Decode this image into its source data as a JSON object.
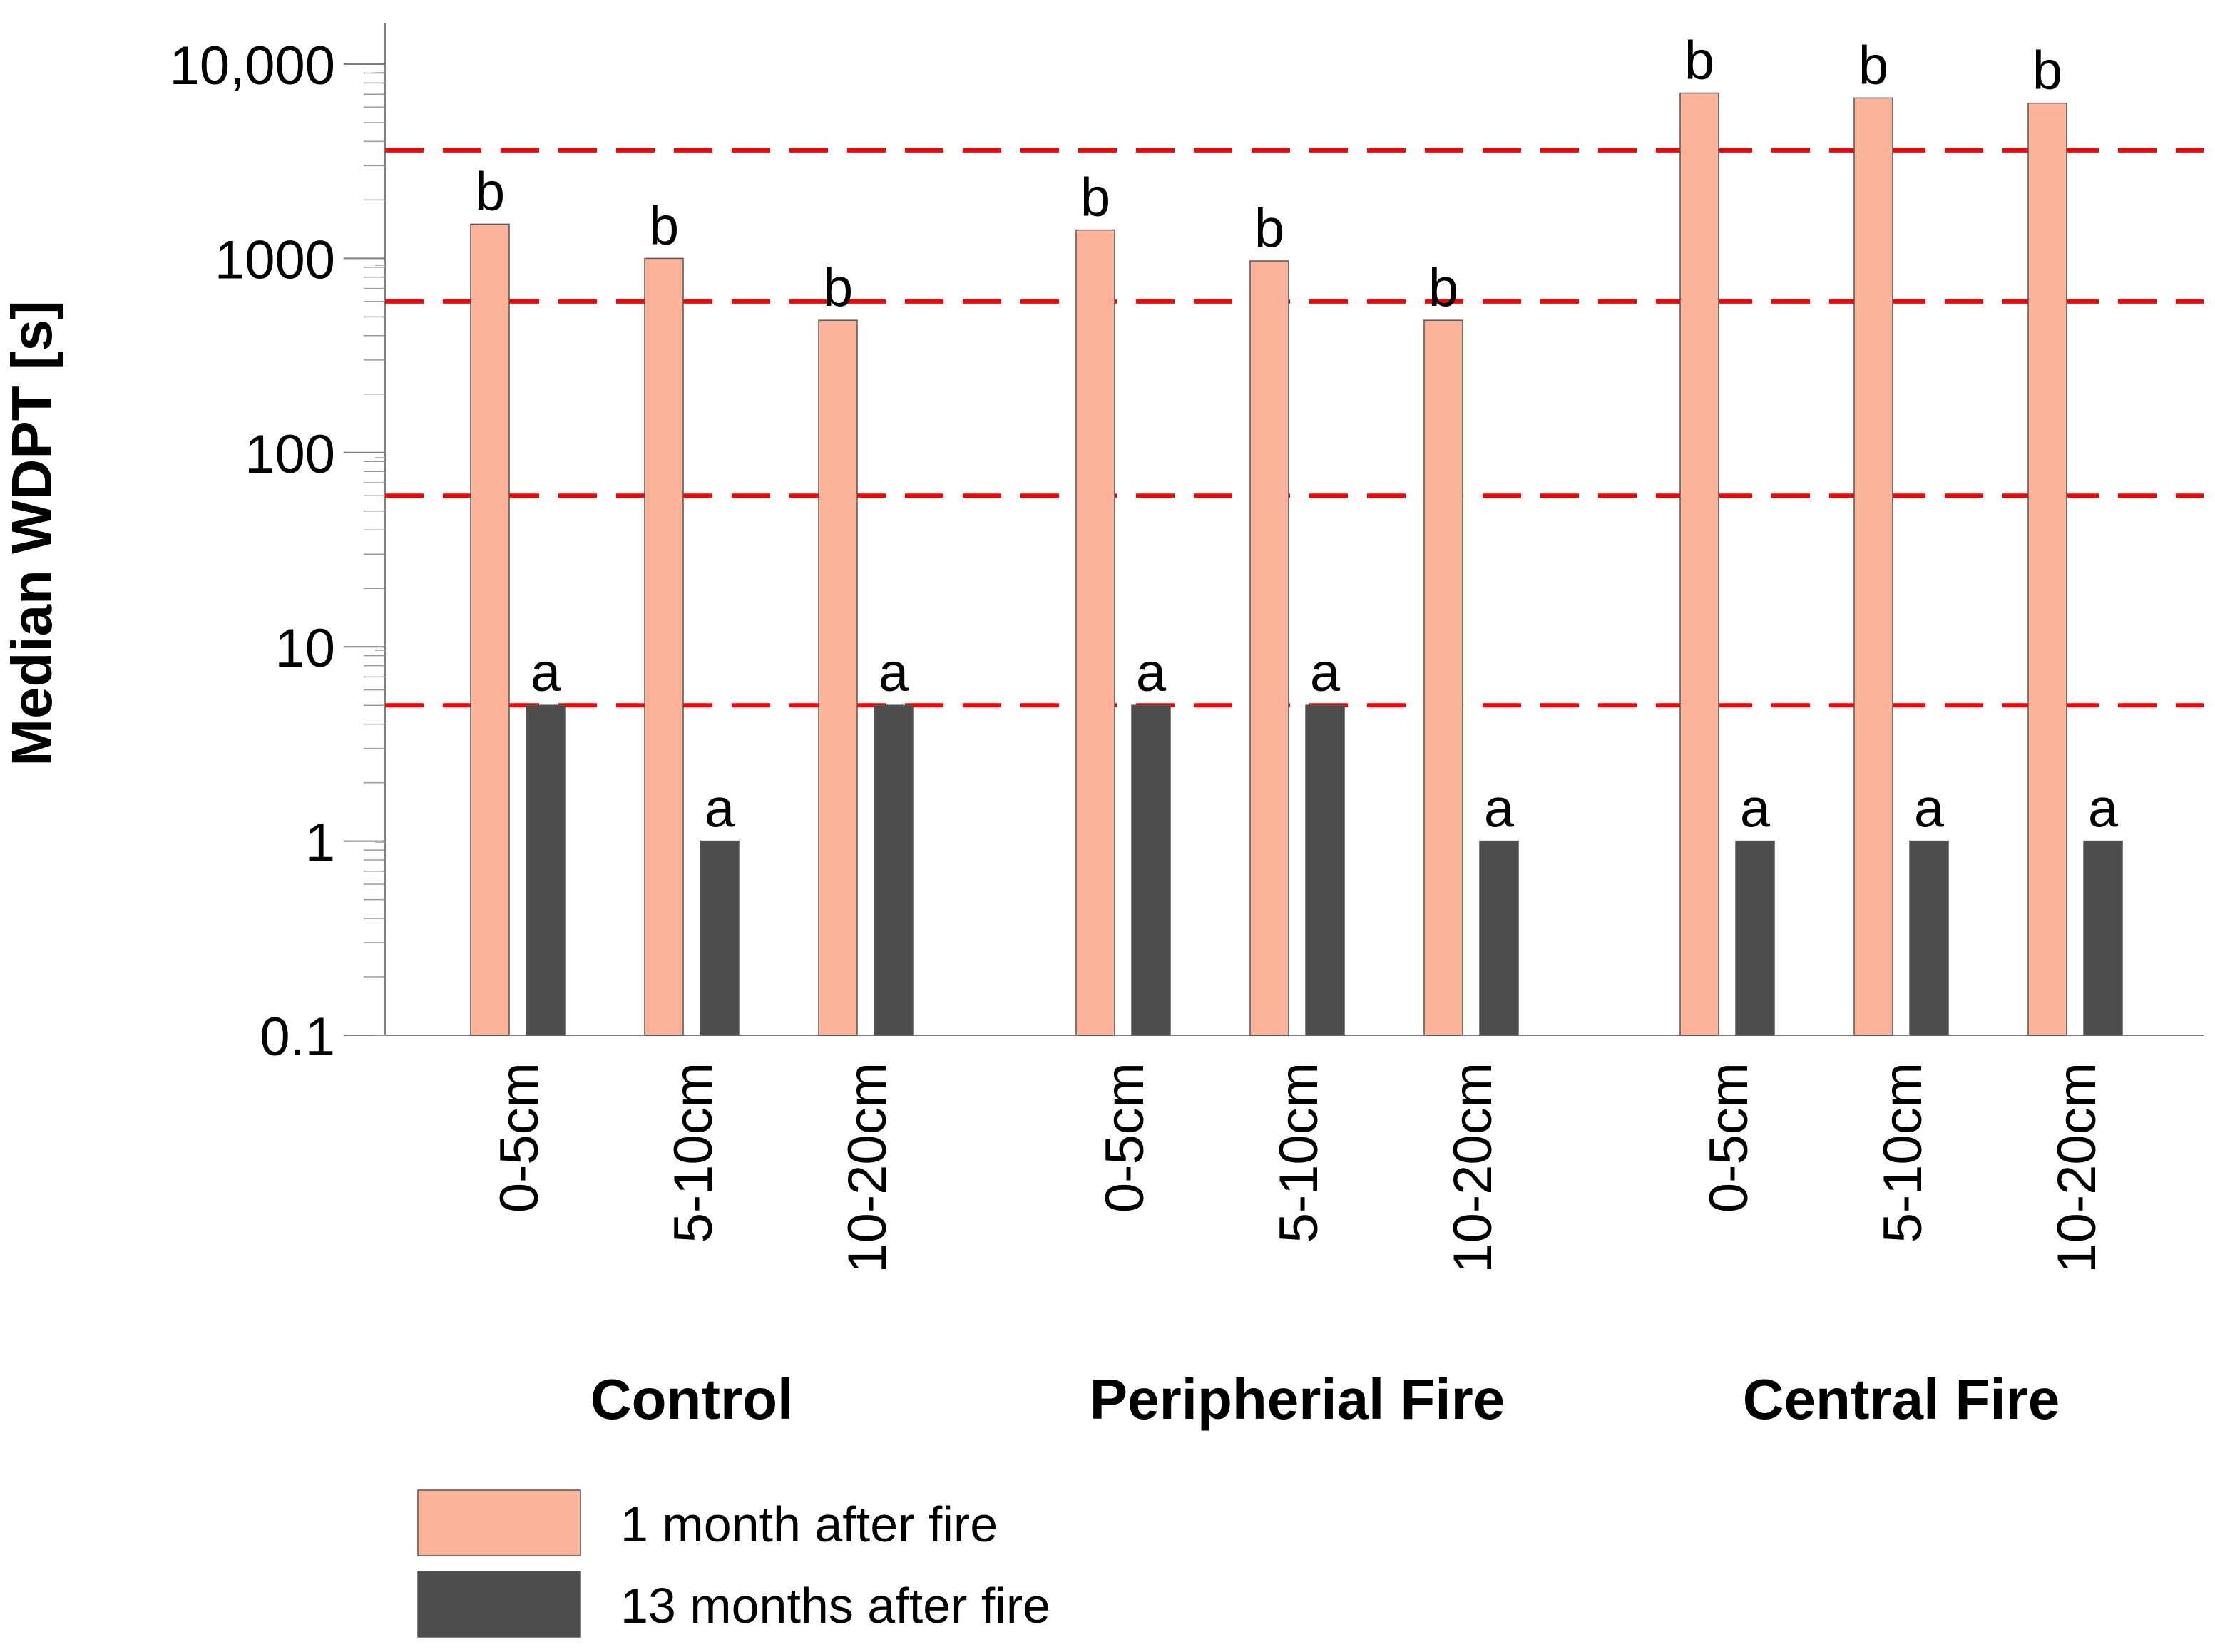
{
  "chart_data": {
    "type": "bar",
    "title": "",
    "ylabel": "Median WDPT [s]",
    "xlabel": "",
    "yscale": "log",
    "ylim": [
      0.1,
      10000
    ],
    "ytick_values": [
      0.1,
      1,
      10,
      100,
      1000,
      10000
    ],
    "ytick_labels": [
      "0.1",
      "1",
      "10",
      "100",
      "1000",
      "10,000"
    ],
    "groups": [
      {
        "name": "Control",
        "categories": [
          "0-5cm",
          "5-10cm",
          "10-20cm"
        ],
        "series_values": [
          [
            1500,
            5
          ],
          [
            1000,
            1
          ],
          [
            480,
            5
          ]
        ],
        "letters": [
          [
            "b",
            "a"
          ],
          [
            "b",
            "a"
          ],
          [
            "b",
            "a"
          ]
        ]
      },
      {
        "name": "Peripherial Fire",
        "categories": [
          "0-5cm",
          "5-10cm",
          "10-20cm"
        ],
        "series_values": [
          [
            1400,
            5
          ],
          [
            970,
            5
          ],
          [
            480,
            1
          ]
        ],
        "letters": [
          [
            "b",
            "a"
          ],
          [
            "b",
            "a"
          ],
          [
            "b",
            "a"
          ]
        ]
      },
      {
        "name": "Central Fire",
        "categories": [
          "0-5cm",
          "5-10cm",
          "10-20cm"
        ],
        "series_values": [
          [
            7100,
            1
          ],
          [
            6700,
            1
          ],
          [
            6300,
            1
          ]
        ],
        "letters": [
          [
            "b",
            "a"
          ],
          [
            "b",
            "a"
          ],
          [
            "b",
            "a"
          ]
        ]
      }
    ],
    "series": [
      {
        "name": "1 month after fire",
        "color": "#FDB49B"
      },
      {
        "name": "13 months after fire",
        "color": "#4D4D4D"
      }
    ],
    "reference_lines": [
      5,
      60,
      600,
      3600
    ],
    "reference_line_color": "#FF0000"
  }
}
